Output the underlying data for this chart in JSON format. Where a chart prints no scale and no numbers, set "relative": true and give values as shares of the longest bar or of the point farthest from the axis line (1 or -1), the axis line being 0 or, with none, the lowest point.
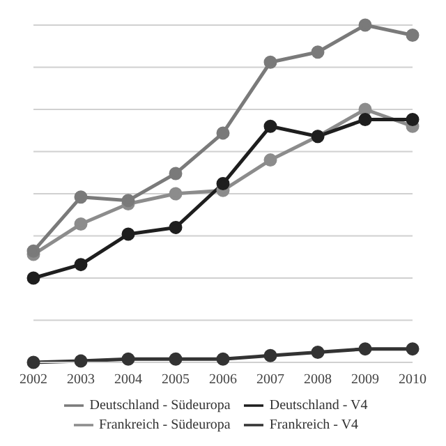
{
  "chart_data": {
    "type": "line",
    "relative": true,
    "categories": [
      "2002",
      "2003",
      "2004",
      "2005",
      "2006",
      "2007",
      "2008",
      "2009",
      "2010"
    ],
    "grid": "y",
    "legend": "bottom",
    "marker": "circle",
    "line_style": "solid",
    "series": [
      {
        "name": "Frankreich - Südeuropa",
        "color": "#8c8c8c",
        "values": [
          0.32,
          0.41,
          0.47,
          0.5,
          0.51,
          0.6,
          0.67,
          0.75,
          0.7
        ]
      },
      {
        "name": "Frankreich - V4",
        "color": "#333333",
        "values": [
          0,
          0.004,
          0.01,
          0.01,
          0.01,
          0.02,
          0.03,
          0.04,
          0.04
        ]
      },
      {
        "name": "Deutschland - Südeuropa",
        "color": "#7a7a7a",
        "values": [
          0.33,
          0.49,
          0.48,
          0.56,
          0.68,
          0.89,
          0.92,
          1,
          0.97
        ]
      },
      {
        "name": "Deutschland - V4",
        "color": "#1e1e1e",
        "values": [
          0.25,
          0.29,
          0.38,
          0.4,
          0.53,
          0.7,
          0.67,
          0.72,
          0.72
        ]
      }
    ]
  }
}
